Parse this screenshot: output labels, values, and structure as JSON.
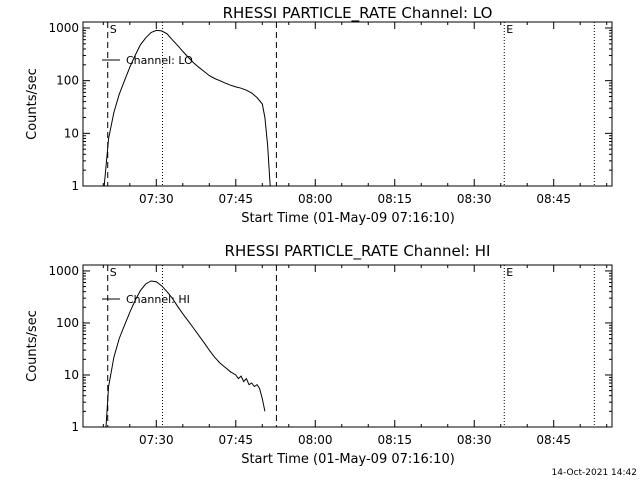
{
  "chart_data": [
    {
      "type": "line",
      "title": "RHESSI PARTICLE_RATE Channel: LO",
      "xlabel": "Start Time (01-May-09 07:16:10)",
      "ylabel": "Counts/sec",
      "yscale": "log",
      "ylim": [
        1,
        1300
      ],
      "xlim": [
        "07:16:10",
        "08:56:00"
      ],
      "x_ticks": [
        "07:30",
        "07:45",
        "08:00",
        "08:15",
        "08:30",
        "08:45"
      ],
      "y_ticks": [
        "1",
        "10",
        "100",
        "1000"
      ],
      "legend": {
        "position": "top-left",
        "entries": [
          "Channel: LO"
        ]
      },
      "markers": [
        {
          "label": "S",
          "time": "07:20:50",
          "style": "dashed"
        },
        {
          "label": "",
          "time": "07:31:10",
          "style": "dotted"
        },
        {
          "label": "",
          "time": "07:52:40",
          "style": "dashed"
        },
        {
          "label": "E",
          "time": "08:35:40",
          "style": "dotted"
        },
        {
          "label": "",
          "time": "08:52:40",
          "style": "dotted"
        }
      ],
      "series": [
        {
          "name": "Channel: LO",
          "x": [
            "07:20:10",
            "07:21:00",
            "07:22:00",
            "07:23:00",
            "07:24:00",
            "07:25:00",
            "07:26:00",
            "07:27:00",
            "07:28:00",
            "07:29:00",
            "07:30:00",
            "07:31:00",
            "07:32:00",
            "07:33:00",
            "07:34:00",
            "07:35:00",
            "07:36:00",
            "07:37:00",
            "07:38:00",
            "07:39:00",
            "07:40:00",
            "07:41:00",
            "07:42:00",
            "07:43:00",
            "07:44:00",
            "07:45:00",
            "07:46:00",
            "07:47:00",
            "07:48:00",
            "07:49:00",
            "07:50:00",
            "07:50:30",
            "07:51:00",
            "07:51:30"
          ],
          "y": [
            1,
            8,
            25,
            55,
            100,
            180,
            300,
            480,
            650,
            820,
            900,
            880,
            780,
            600,
            470,
            360,
            280,
            220,
            180,
            150,
            125,
            110,
            100,
            90,
            82,
            76,
            72,
            66,
            58,
            48,
            36,
            20,
            6,
            1
          ]
        }
      ]
    },
    {
      "type": "line",
      "title": "RHESSI PARTICLE_RATE Channel: HI",
      "xlabel": "Start Time (01-May-09 07:16:10)",
      "ylabel": "Counts/sec",
      "yscale": "log",
      "ylim": [
        1,
        1300
      ],
      "xlim": [
        "07:16:10",
        "08:56:00"
      ],
      "x_ticks": [
        "07:30",
        "07:45",
        "08:00",
        "08:15",
        "08:30",
        "08:45"
      ],
      "y_ticks": [
        "1",
        "10",
        "100",
        "1000"
      ],
      "legend": {
        "position": "top-left",
        "entries": [
          "Channel: HI"
        ]
      },
      "markers": [
        {
          "label": "S",
          "time": "07:20:50",
          "style": "dashed"
        },
        {
          "label": "",
          "time": "07:31:10",
          "style": "dotted"
        },
        {
          "label": "",
          "time": "07:52:40",
          "style": "dashed"
        },
        {
          "label": "E",
          "time": "08:35:40",
          "style": "dotted"
        },
        {
          "label": "",
          "time": "08:52:40",
          "style": "dotted"
        }
      ],
      "series": [
        {
          "name": "Channel: HI",
          "x": [
            "07:20:30",
            "07:21:00",
            "07:22:00",
            "07:23:00",
            "07:24:00",
            "07:25:00",
            "07:26:00",
            "07:27:00",
            "07:28:00",
            "07:29:00",
            "07:30:00",
            "07:31:00",
            "07:32:00",
            "07:33:00",
            "07:34:00",
            "07:35:00",
            "07:36:00",
            "07:37:00",
            "07:38:00",
            "07:39:00",
            "07:40:00",
            "07:41:00",
            "07:42:00",
            "07:43:00",
            "07:44:00",
            "07:45:00",
            "07:45:30",
            "07:46:00",
            "07:46:30",
            "07:47:00",
            "07:47:30",
            "07:48:00",
            "07:48:30",
            "07:49:00",
            "07:49:30",
            "07:50:00",
            "07:50:30"
          ],
          "y": [
            1,
            6,
            22,
            50,
            90,
            160,
            270,
            420,
            560,
            640,
            620,
            520,
            400,
            300,
            210,
            150,
            110,
            80,
            58,
            42,
            30,
            22,
            17,
            14,
            11.5,
            10,
            8.5,
            9.5,
            7.5,
            8.5,
            6.5,
            7,
            6,
            6.5,
            5.5,
            3.5,
            2
          ]
        }
      ]
    }
  ],
  "footer": {
    "timestamp": "14-Oct-2021 14:42"
  }
}
